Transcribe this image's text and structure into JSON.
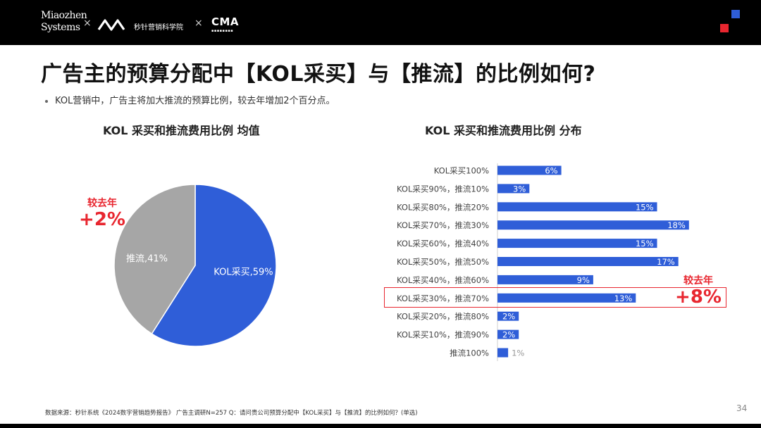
{
  "header": {
    "brand_line1": "Miaozhen",
    "brand_line2": "Systems",
    "cross1": "×",
    "cross2": "×",
    "brand2_name": "秒针营销科学院",
    "cma_logo": "CMA"
  },
  "title": "广告主的预算分配中【KOL采买】与【推流】的比例如何?",
  "bullet": "KOL营销中，广告主将加大推流的预算比例，较去年增加2个百分点。",
  "pie_change": {
    "label": "较去年",
    "value": "+2%"
  },
  "bar_change": {
    "label": "较去年",
    "value": "+8%"
  },
  "source": "数据来源：秒针系统《2024数字营销趋势报告》 广告主调研N=257 Q：请问贵公司预算分配中【KOL采买】与【推流】的比例如何？(单选)",
  "page_number": "34",
  "colors": {
    "blue": "#2f5ed8",
    "gray": "#a6a6a6",
    "red": "#e8262f"
  },
  "chart_data": [
    {
      "type": "pie",
      "title": "KOL 采买和推流费用比例  均值",
      "slices": [
        {
          "label": "KOL采买,59%",
          "value": 59,
          "color": "#2f5ed8"
        },
        {
          "label": "推流,41%",
          "value": 41,
          "color": "#a6a6a6"
        }
      ]
    },
    {
      "type": "bar",
      "orientation": "horizontal",
      "title": "KOL 采买和推流费用比例  分布",
      "categories": [
        "KOL采买100%",
        "KOL采买90%，推流10%",
        "KOL采买80%，推流20%",
        "KOL采买70%，推流30%",
        "KOL采买60%，推流40%",
        "KOL采买50%，推流50%",
        "KOL采买40%，推流60%",
        "KOL采买30%，推流70%",
        "KOL采买20%，推流80%",
        "KOL采买10%，推流90%",
        "推流100%"
      ],
      "values": [
        6,
        3,
        15,
        18,
        15,
        17,
        9,
        13,
        2,
        2,
        1
      ],
      "labels": [
        "6%",
        "3%",
        "15%",
        "18%",
        "15%",
        "17%",
        "9%",
        "13%",
        "2%",
        "2%",
        "1%"
      ],
      "color": "#2f5ed8"
    }
  ]
}
